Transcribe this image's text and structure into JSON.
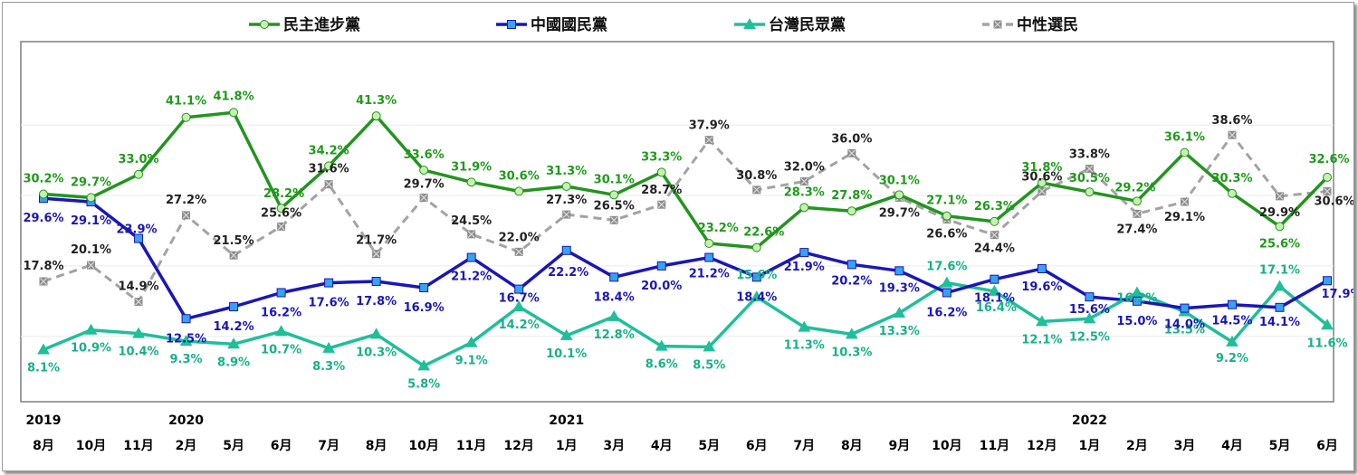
{
  "chart_data": {
    "type": "line",
    "title": "",
    "xlabel": "",
    "ylabel": "",
    "ylim": [
      0,
      50
    ],
    "grid": "horizontal",
    "legend_position": "top",
    "categories": [
      "8月",
      "10月",
      "11月",
      "2月",
      "5月",
      "6月",
      "7月",
      "8月",
      "10月",
      "11月",
      "12月",
      "1月",
      "3月",
      "4月",
      "5月",
      "6月",
      "7月",
      "8月",
      "9月",
      "10月",
      "11月",
      "12月",
      "1月",
      "2月",
      "3月",
      "4月",
      "5月",
      "6月"
    ],
    "year_labels": [
      {
        "label": "2019",
        "index": 0
      },
      {
        "label": "2020",
        "index": 3
      },
      {
        "label": "2021",
        "index": 11
      },
      {
        "label": "2022",
        "index": 22
      }
    ],
    "series": [
      {
        "name": "民主進步黨",
        "color": "#22951e",
        "marker": "circle",
        "marker_fill": "#c7f0b0",
        "dashed": false,
        "label_color": "#1f9a1a",
        "values": [
          30.2,
          29.7,
          33.0,
          41.1,
          41.8,
          28.2,
          34.2,
          41.3,
          33.6,
          31.9,
          30.6,
          31.3,
          30.1,
          33.3,
          23.2,
          22.6,
          28.3,
          27.8,
          30.1,
          27.1,
          26.3,
          31.8,
          30.5,
          29.2,
          36.1,
          30.3,
          25.6,
          32.6
        ],
        "labels": [
          "30.2%",
          "29.7%",
          "33.0%",
          "41.1%",
          "41.8%",
          "28.2%",
          "34.2%",
          "41.3%",
          "33.6%",
          "31.9%",
          "30.6%",
          "31.3%",
          "30.1%",
          "33.3%",
          "23.2%",
          "22.6%",
          "28.3%",
          "27.8%",
          "30.1%",
          "27.1%",
          "26.3%",
          "31.8%",
          "30.5%",
          "29.2%",
          "36.1%",
          "30.3%",
          "25.6%",
          "32.6%"
        ]
      },
      {
        "name": "中國國民黨",
        "color": "#1a16b8",
        "marker": "square",
        "marker_fill": "#35a3ee",
        "dashed": false,
        "label_color": "#1a16b8",
        "values": [
          29.6,
          29.1,
          23.9,
          12.5,
          14.2,
          16.2,
          17.6,
          17.8,
          16.9,
          21.2,
          16.7,
          22.2,
          18.4,
          20.0,
          21.2,
          18.4,
          21.9,
          20.2,
          19.3,
          16.2,
          18.1,
          19.6,
          15.6,
          15.0,
          14.0,
          14.5,
          14.1,
          17.9
        ],
        "labels": [
          "29.6%",
          "29.1%",
          "23.9%",
          "12.5%",
          "14.2%",
          "16.2%",
          "17.6%",
          "17.8%",
          "16.9%",
          "21.2%",
          "16.7%",
          "22.2%",
          "18.4%",
          "20.0%",
          "21.2%",
          "18.4%",
          "21.9%",
          "20.2%",
          "19.3%",
          "16.2%",
          "18.1%",
          "19.6%",
          "15.6%",
          "15.0%",
          "14.0%",
          "14.5%",
          "14.1%",
          "17.9%"
        ]
      },
      {
        "name": "台灣民眾黨",
        "color": "#1fbf9a",
        "marker": "triangle",
        "marker_fill": "#1fbf9a",
        "dashed": false,
        "label_color": "#17b08a",
        "values": [
          8.1,
          10.9,
          10.4,
          9.3,
          8.9,
          10.7,
          8.3,
          10.3,
          5.8,
          9.1,
          14.2,
          10.1,
          12.8,
          8.6,
          8.5,
          15.6,
          11.3,
          10.3,
          13.3,
          17.6,
          16.4,
          12.1,
          12.5,
          16.2,
          13.5,
          9.2,
          17.1,
          11.6
        ],
        "labels": [
          "8.1%",
          "10.9%",
          "10.4%",
          "9.3%",
          "8.9%",
          "10.7%",
          "8.3%",
          "10.3%",
          "5.8%",
          "9.1%",
          "14.2%",
          "10.1%",
          "12.8%",
          "8.6%",
          "8.5%",
          "15.6%",
          "11.3%",
          "10.3%",
          "13.3%",
          "17.6%",
          "16.4%",
          "12.1%",
          "12.5%",
          "16.2%",
          "13.5%",
          "9.2%",
          "17.1%",
          "11.6%"
        ]
      },
      {
        "name": "中性選民",
        "color": "#a3a3a3",
        "marker": "x-square",
        "marker_fill": "#8c8c8c",
        "dashed": true,
        "label_color": "#222222",
        "values": [
          17.8,
          20.1,
          14.9,
          27.2,
          21.5,
          25.6,
          31.6,
          21.7,
          29.7,
          24.5,
          22.0,
          27.3,
          26.5,
          28.7,
          37.9,
          30.8,
          32.0,
          36.0,
          29.7,
          26.6,
          24.4,
          30.6,
          33.8,
          27.4,
          29.1,
          38.6,
          29.9,
          30.6
        ],
        "labels": [
          "17.8%",
          "20.1%",
          "14.9%",
          "27.2%",
          "21.5%",
          "25.6%",
          "31.6%",
          "21.7%",
          "29.7%",
          "24.5%",
          "22.0%",
          "27.3%",
          "26.5%",
          "28.7%",
          "37.9%",
          "30.8%",
          "32.0%",
          "36.0%",
          "29.7%",
          "26.6%",
          "24.4%",
          "30.6%",
          "33.8%",
          "27.4%",
          "29.1%",
          "38.6%",
          "29.9%",
          "30.6%"
        ]
      }
    ]
  }
}
